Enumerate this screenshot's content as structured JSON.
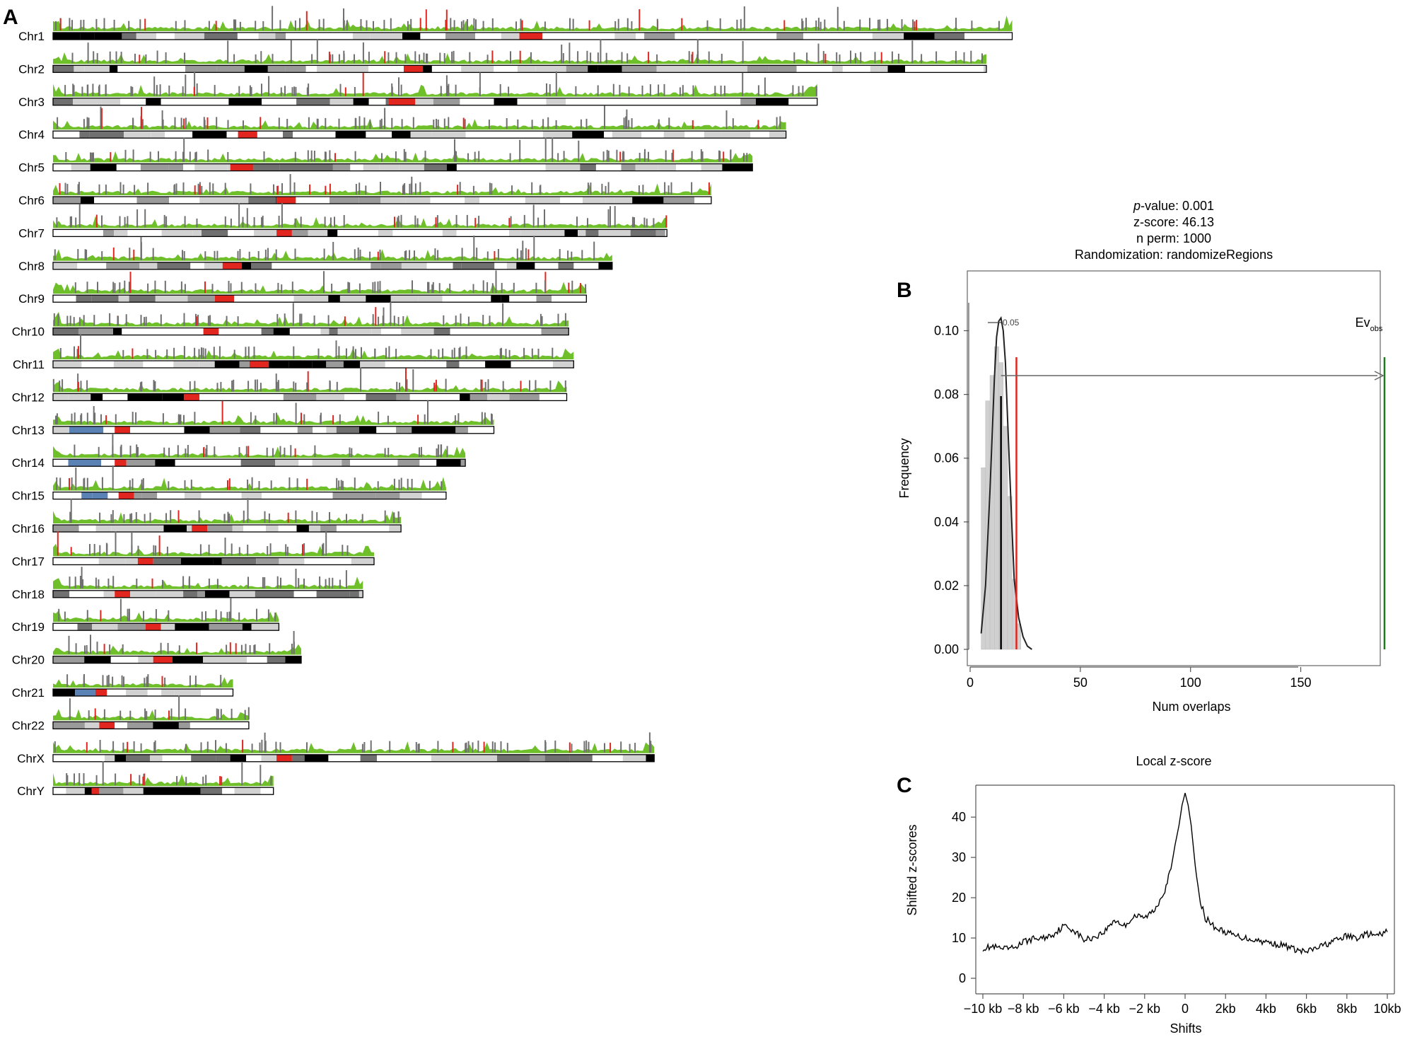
{
  "figure": {
    "panel_a_letter": "A",
    "panel_b_letter": "B",
    "panel_c_letter": "C"
  },
  "karyotype": {
    "chromosomes": [
      {
        "name": "Chr1",
        "length": 248.9,
        "centromere": [
          121,
          127
        ],
        "acrocentric": false
      },
      {
        "name": "Chr2",
        "length": 242.2,
        "centromere": [
          91,
          96
        ],
        "acrocentric": false
      },
      {
        "name": "Chr3",
        "length": 198.3,
        "centromere": [
          87,
          94
        ],
        "acrocentric": false
      },
      {
        "name": "Chr4",
        "length": 190.2,
        "centromere": [
          48,
          53
        ],
        "acrocentric": false
      },
      {
        "name": "Chr5",
        "length": 181.5,
        "centromere": [
          46,
          52
        ],
        "acrocentric": false
      },
      {
        "name": "Chr6",
        "length": 170.8,
        "centromere": [
          58,
          63
        ],
        "acrocentric": false
      },
      {
        "name": "Chr7",
        "length": 159.3,
        "centromere": [
          58,
          62
        ],
        "acrocentric": false
      },
      {
        "name": "Chr8",
        "length": 145.1,
        "centromere": [
          44,
          49
        ],
        "acrocentric": false
      },
      {
        "name": "Chr9",
        "length": 138.4,
        "centromere": [
          42,
          47
        ],
        "acrocentric": false
      },
      {
        "name": "Chr10",
        "length": 133.8,
        "centromere": [
          39,
          43
        ],
        "acrocentric": false
      },
      {
        "name": "Chr11",
        "length": 135.1,
        "centromere": [
          51,
          56
        ],
        "acrocentric": false
      },
      {
        "name": "Chr12",
        "length": 133.3,
        "centromere": [
          34,
          38
        ],
        "acrocentric": false
      },
      {
        "name": "Chr13",
        "length": 114.4,
        "centromere": [
          16,
          20
        ],
        "acrocentric": true
      },
      {
        "name": "Chr14",
        "length": 107.0,
        "centromere": [
          16,
          19
        ],
        "acrocentric": true
      },
      {
        "name": "Chr15",
        "length": 102.0,
        "centromere": [
          17,
          21
        ],
        "acrocentric": true
      },
      {
        "name": "Chr16",
        "length": 90.3,
        "centromere": [
          36,
          40
        ],
        "acrocentric": false
      },
      {
        "name": "Chr17",
        "length": 83.3,
        "centromere": [
          22,
          26
        ],
        "acrocentric": false
      },
      {
        "name": "Chr18",
        "length": 80.4,
        "centromere": [
          16,
          20
        ],
        "acrocentric": false
      },
      {
        "name": "Chr19",
        "length": 58.6,
        "centromere": [
          24,
          28
        ],
        "acrocentric": false
      },
      {
        "name": "Chr20",
        "length": 64.4,
        "centromere": [
          26,
          31
        ],
        "acrocentric": false
      },
      {
        "name": "Chr21",
        "length": 46.7,
        "centromere": [
          11,
          14
        ],
        "acrocentric": true
      },
      {
        "name": "Chr22",
        "length": 50.8,
        "centromere": [
          12,
          16
        ],
        "acrocentric": true
      },
      {
        "name": "ChrX",
        "length": 156.0,
        "centromere": [
          58,
          62
        ],
        "acrocentric": false
      },
      {
        "name": "ChrY",
        "length": 57.2,
        "centromere": [
          10,
          12
        ],
        "acrocentric": false
      }
    ],
    "colors": {
      "gpos100": "#000000",
      "gpos75": "#707070",
      "gpos50": "#9a9a9a",
      "gpos25": "#d2d2d2",
      "gneg": "#ffffff",
      "acen": "#e0261f",
      "stalk": "#5b82b4",
      "density": "#6fbf2b",
      "tick_grey": "#707070",
      "tick_red": "#e0261f"
    }
  },
  "permtest": {
    "pvalue_italic": "p",
    "pvalue_rest": "-value: 0.001",
    "zscore_text": "z-score: 46.13",
    "nperm_text": "n perm: 1000",
    "randomization_text": "Randomization: randomizeRegions",
    "alpha_label": "0.05",
    "ev_label_main": "Ev",
    "ev_label_sub": "obs",
    "colors": {
      "observed": "#1e7b1e",
      "alpha": "#e0261f",
      "mean": "#000000",
      "hist": "#d0d0d0"
    }
  },
  "localz": {
    "title": "Local z-score",
    "colors": {
      "line": "#000000"
    }
  },
  "chart_data": [
    {
      "type": "histogram",
      "panel": "B",
      "title": "",
      "xlabel": "Num overlaps",
      "ylabel": "Frequency",
      "xlim": [
        0,
        188
      ],
      "ylim": [
        0,
        0.105
      ],
      "xticks": [
        0,
        50,
        100,
        150
      ],
      "xtick_labels": [
        "0",
        "50",
        "100",
        "150"
      ],
      "yticks": [
        0.0,
        0.02,
        0.04,
        0.06,
        0.08,
        0.1
      ],
      "ytick_labels": [
        "0.00",
        "0.02",
        "0.04",
        "0.06",
        "0.08",
        "0.10"
      ],
      "permuted_density": {
        "x": [
          5,
          7,
          9,
          11,
          12,
          13,
          14,
          15,
          16,
          17,
          18,
          19,
          20,
          22,
          24,
          26,
          28
        ],
        "y": [
          0.005,
          0.02,
          0.05,
          0.085,
          0.098,
          0.103,
          0.104,
          0.1,
          0.09,
          0.072,
          0.055,
          0.038,
          0.022,
          0.01,
          0.004,
          0.001,
          0
        ]
      },
      "histogram_bins": {
        "x": [
          6,
          8,
          10,
          12,
          14,
          16,
          18,
          20,
          22
        ],
        "y": [
          0.057,
          0.078,
          0.086,
          0.095,
          0.09,
          0.07,
          0.048,
          0.022,
          0.008
        ]
      },
      "mean_permuted": 14,
      "alpha_threshold": 21,
      "alpha_value": 0.05,
      "observed": 188,
      "pvalue": 0.001,
      "zscore": 46.13,
      "n_permutations": 1000
    },
    {
      "type": "line",
      "panel": "C",
      "title": "Local z-score",
      "xlabel": "Shifts",
      "ylabel": "Shifted z-scores",
      "xlim": [
        -10,
        10
      ],
      "ylim": [
        0,
        46
      ],
      "xticks": [
        -10,
        -8,
        -6,
        -4,
        -2,
        0,
        2,
        4,
        6,
        8,
        10
      ],
      "xtick_labels": [
        "−10 kb",
        "−8 kb",
        "−6 kb",
        "−4 kb",
        "−2 kb",
        "0",
        "2kb",
        "4kb",
        "6kb",
        "8kb",
        "10kb"
      ],
      "yticks": [
        0,
        10,
        20,
        30,
        40
      ],
      "ytick_labels": [
        "0",
        "10",
        "20",
        "30",
        "40"
      ],
      "series": [
        {
          "x": [
            -10,
            -9.5,
            -9,
            -8.5,
            -8,
            -7.5,
            -7,
            -6.5,
            -6,
            -5.5,
            -5,
            -4.5,
            -4,
            -3.5,
            -3,
            -2.5,
            -2,
            -1.5,
            -1,
            -0.7,
            -0.5,
            -0.3,
            -0.15,
            0,
            0.15,
            0.3,
            0.5,
            0.7,
            1,
            1.5,
            2,
            2.5,
            3,
            3.5,
            4,
            4.5,
            5,
            5.5,
            6,
            6.5,
            7,
            7.5,
            8,
            8.5,
            9,
            9.5,
            10
          ],
          "y": [
            7.5,
            7.8,
            7.2,
            7.5,
            9,
            9.8,
            10,
            11,
            13,
            12,
            9.5,
            10.2,
            11.5,
            14.5,
            13,
            15.5,
            15,
            17,
            22,
            27,
            33,
            38,
            43,
            46,
            43,
            38,
            28,
            20,
            15,
            12.5,
            11.5,
            10.5,
            10,
            9.5,
            9,
            8.5,
            8,
            7,
            6.5,
            7.5,
            8.5,
            9.5,
            10.5,
            10,
            11,
            10.5,
            11.5
          ]
        }
      ]
    }
  ]
}
